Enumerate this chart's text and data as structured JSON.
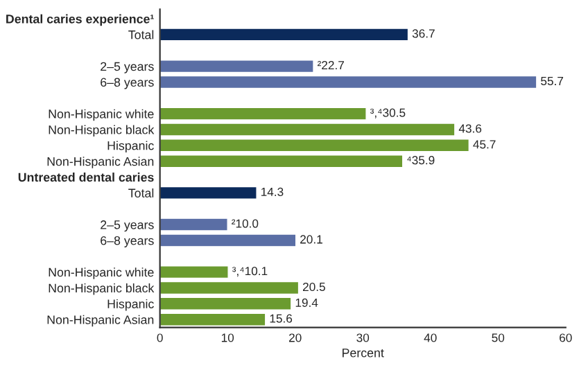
{
  "chart_data": {
    "type": "bar",
    "orientation": "horizontal",
    "xlabel": "Percent",
    "categories": [
      "Dental caries experience¹",
      "Total",
      null,
      "2–5 years",
      "6–8 years",
      null,
      "Non-Hispanic white",
      "Non-Hispanic black",
      "Hispanic",
      "Non-Hispanic Asian",
      "Untreated dental caries",
      "Total",
      null,
      "2–5 years",
      "6–8 years",
      null,
      "Non-Hispanic white",
      "Non-Hispanic black",
      "Hispanic",
      "Non-Hispanic Asian"
    ],
    "values": [
      null,
      36.7,
      null,
      22.7,
      55.7,
      null,
      30.5,
      43.6,
      45.7,
      35.9,
      null,
      14.3,
      null,
      10.0,
      20.1,
      null,
      10.1,
      20.5,
      19.4,
      15.6
    ],
    "value_labels": [
      null,
      "36.7",
      null,
      "²22.7",
      "55.7",
      null,
      "³,⁴30.5",
      "43.6",
      "45.7",
      "⁴35.9",
      null,
      "14.3",
      null,
      "²10.0",
      "20.1",
      null,
      "³,⁴10.1",
      "20.5",
      "19.4",
      "15.6"
    ],
    "colors": [
      null,
      "#0b2a5b",
      null,
      "#5a6ea5",
      "#5a6ea5",
      null,
      "#6b9b2f",
      "#6b9b2f",
      "#6b9b2f",
      "#6b9b2f",
      null,
      "#0b2a5b",
      null,
      "#5a6ea5",
      "#5a6ea5",
      null,
      "#6b9b2f",
      "#6b9b2f",
      "#6b9b2f",
      "#6b9b2f"
    ],
    "xlim": [
      0,
      60
    ],
    "xticks": [
      0,
      10,
      20,
      30,
      40,
      50,
      60
    ],
    "grid": false,
    "legend": false
  }
}
